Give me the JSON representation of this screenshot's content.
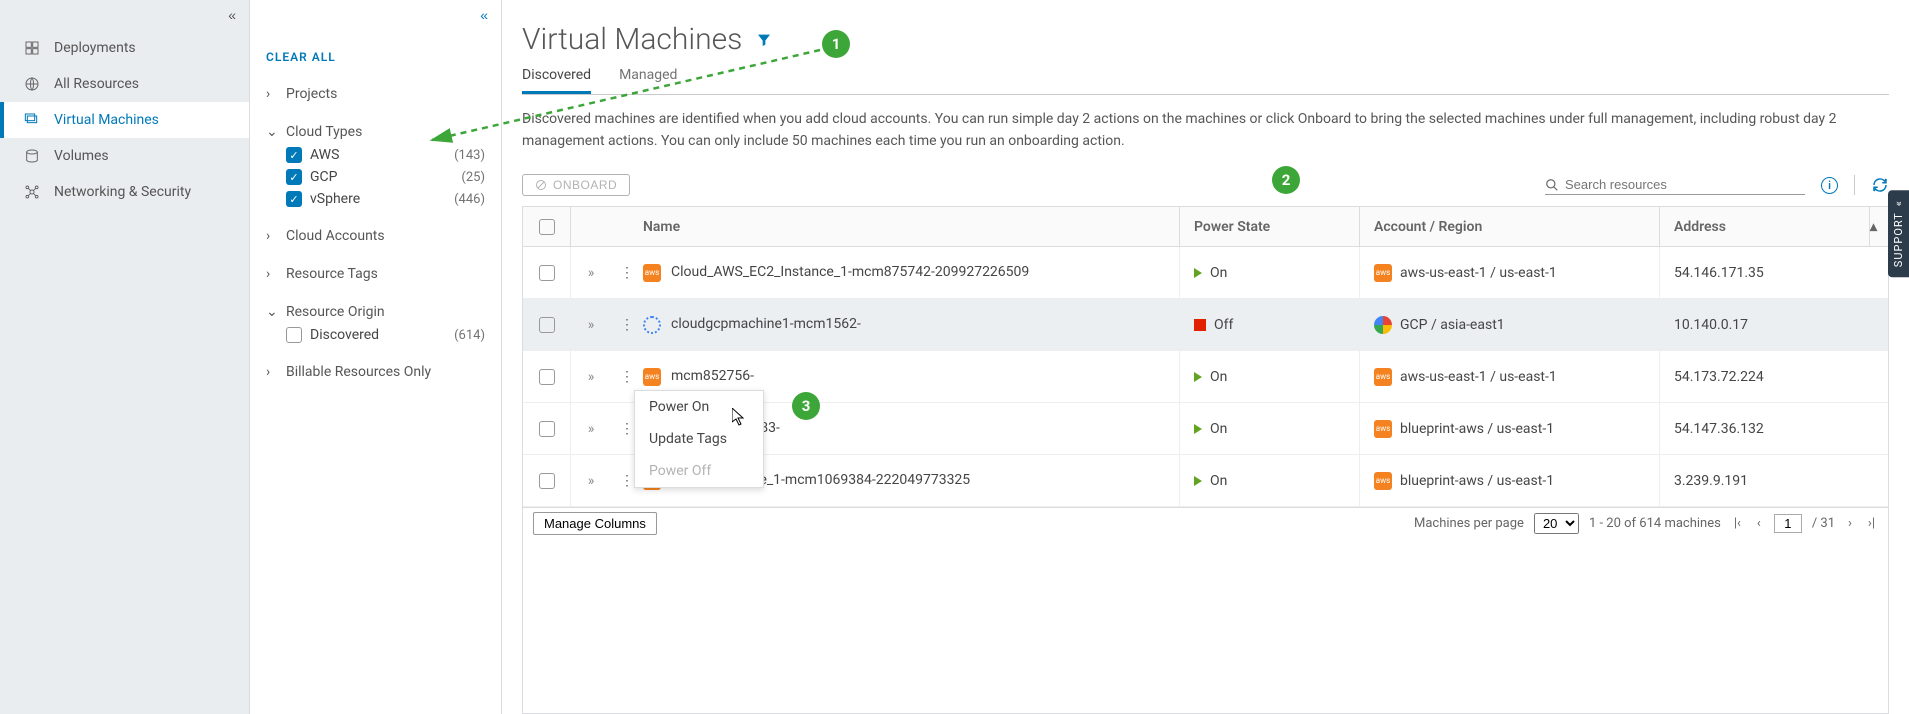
{
  "nav": {
    "items": [
      {
        "label": "Deployments"
      },
      {
        "label": "All Resources"
      },
      {
        "label": "Virtual Machines"
      },
      {
        "label": "Volumes"
      },
      {
        "label": "Networking & Security"
      }
    ],
    "active_index": 2
  },
  "filters": {
    "clear_all_label": "CLEAR ALL",
    "groups": {
      "projects": {
        "label": "Projects",
        "expanded": false
      },
      "cloud_types": {
        "label": "Cloud Types",
        "expanded": true,
        "items": [
          {
            "label": "AWS",
            "count": "(143)",
            "checked": true
          },
          {
            "label": "GCP",
            "count": "(25)",
            "checked": true
          },
          {
            "label": "vSphere",
            "count": "(446)",
            "checked": true
          }
        ]
      },
      "cloud_accounts": {
        "label": "Cloud Accounts",
        "expanded": false
      },
      "resource_tags": {
        "label": "Resource Tags",
        "expanded": false
      },
      "resource_origin": {
        "label": "Resource Origin",
        "expanded": true,
        "items": [
          {
            "label": "Discovered",
            "count": "(614)",
            "checked": false
          }
        ]
      },
      "billable": {
        "label": "Billable Resources Only",
        "expanded": false
      }
    }
  },
  "page": {
    "title": "Virtual Machines",
    "tabs": [
      {
        "label": "Discovered",
        "active": true
      },
      {
        "label": "Managed",
        "active": false
      }
    ],
    "description": "Discovered machines are identified when you add cloud accounts. You can run simple day 2 actions on the machines or click Onboard to bring the selected machines under full management, including robust day 2 management actions. You can only include 50 machines each time you run an onboarding action.",
    "onboard_label": "ONBOARD",
    "search_placeholder": "Search resources"
  },
  "table": {
    "columns": {
      "name": "Name",
      "power": "Power State",
      "account": "Account / Region",
      "address": "Address"
    },
    "rows": [
      {
        "name": "Cloud_AWS_EC2_Instance_1-mcm875742-209927226509",
        "power": "On",
        "power_on": true,
        "provider": "aws",
        "account": "aws-us-east-1 / us-east-1",
        "address": "54.146.171.35"
      },
      {
        "name": "cloudgcpmachine1-mcm1562-",
        "power": "Off",
        "power_on": false,
        "provider": "gcp",
        "account": "GCP / asia-east1",
        "address": "10.140.0.17",
        "selected_bg": true
      },
      {
        "name": "mcm852756-",
        "power": "On",
        "power_on": true,
        "provider": "aws",
        "account": "aws-us-east-1 / us-east-1",
        "address": "54.173.72.224"
      },
      {
        "name": "_1-mcm1069383-",
        "power": "On",
        "power_on": true,
        "provider": "aws",
        "account": "blueprint-aws / us-east-1",
        "address": "54.147.36.132"
      },
      {
        "name": "Cloud_Machine_1-mcm1069384-222049773325",
        "power": "On",
        "power_on": true,
        "provider": "aws",
        "account": "blueprint-aws / us-east-1",
        "address": "3.239.9.191"
      }
    ]
  },
  "context_menu": {
    "power_on": "Power On",
    "update_tags": "Update Tags",
    "power_off": "Power Off"
  },
  "footer": {
    "manage_columns": "Manage Columns",
    "per_page_label": "Machines per page",
    "per_page_value": "20",
    "range_text": "1 - 20 of 614 machines",
    "page_current": "1",
    "page_total": "/ 31"
  },
  "callouts": {
    "c1": "1",
    "c2": "2",
    "c3": "3"
  },
  "support_label": "SUPPORT",
  "colors": {
    "primary": "#0079b8",
    "callout_green": "#3da639",
    "aws_orange": "#f58220",
    "on_green": "#62a420",
    "off_red": "#e12200",
    "sidebar_bg": "#eaedf0",
    "border": "#dadce0",
    "text": "#454545"
  }
}
